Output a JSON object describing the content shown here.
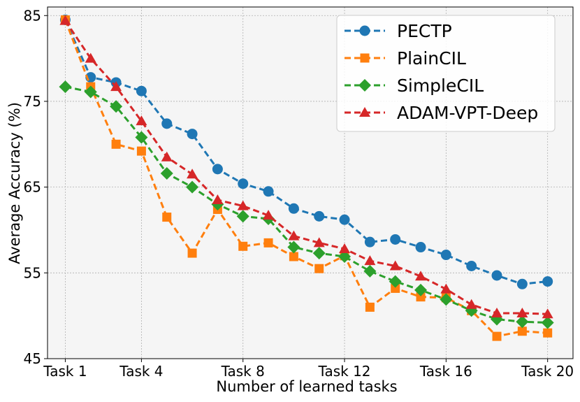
{
  "chart_data": {
    "type": "line",
    "title": "",
    "xlabel": "Number of learned tasks",
    "ylabel": "Average Accuracy (%)",
    "x": [
      1,
      2,
      3,
      4,
      5,
      6,
      7,
      8,
      9,
      10,
      11,
      12,
      13,
      14,
      15,
      16,
      17,
      18,
      19,
      20
    ],
    "xlim": [
      0.3,
      21.0
    ],
    "ylim": [
      45,
      86
    ],
    "xticks": [
      {
        "value": 1,
        "label": "Task 1"
      },
      {
        "value": 4,
        "label": "Task 4"
      },
      {
        "value": 8,
        "label": "Task 8"
      },
      {
        "value": 12,
        "label": "Task 12"
      },
      {
        "value": 16,
        "label": "Task 16"
      },
      {
        "value": 20,
        "label": "Task 20"
      }
    ],
    "yticks": [
      {
        "value": 45,
        "label": "45"
      },
      {
        "value": 55,
        "label": "55"
      },
      {
        "value": 65,
        "label": "65"
      },
      {
        "value": 75,
        "label": "75"
      },
      {
        "value": 85,
        "label": "85"
      }
    ],
    "grid": true,
    "legend_position": "top-right",
    "series": [
      {
        "name": "PECTP",
        "color": "#1f77b4",
        "marker": "circle",
        "values": [
          84.5,
          77.8,
          77.2,
          76.2,
          72.4,
          71.2,
          67.1,
          65.4,
          64.5,
          62.5,
          61.6,
          61.2,
          58.6,
          58.9,
          58.0,
          57.1,
          55.8,
          54.7,
          53.7,
          54.0
        ]
      },
      {
        "name": "PlainCIL",
        "color": "#ff7f0e",
        "marker": "square",
        "values": [
          84.5,
          76.7,
          70.0,
          69.2,
          61.5,
          57.3,
          62.4,
          58.1,
          58.5,
          56.9,
          55.5,
          57.0,
          51.0,
          53.2,
          52.2,
          52.1,
          50.6,
          47.6,
          48.2,
          48.0
        ]
      },
      {
        "name": "SimpleCIL",
        "color": "#2ca02c",
        "marker": "diamond",
        "values": [
          76.7,
          76.1,
          74.4,
          70.8,
          66.6,
          65.0,
          63.0,
          61.6,
          61.3,
          58.0,
          57.3,
          56.9,
          55.2,
          54.0,
          53.0,
          51.9,
          50.6,
          49.6,
          49.3,
          49.2
        ]
      },
      {
        "name": "ADAM-VPT-Deep",
        "color": "#d62728",
        "marker": "triangle",
        "values": [
          84.4,
          80.0,
          76.7,
          72.7,
          68.5,
          66.5,
          63.5,
          62.8,
          61.7,
          59.3,
          58.5,
          57.8,
          56.4,
          55.8,
          54.6,
          53.1,
          51.3,
          50.3,
          50.3,
          50.2
        ]
      }
    ]
  }
}
